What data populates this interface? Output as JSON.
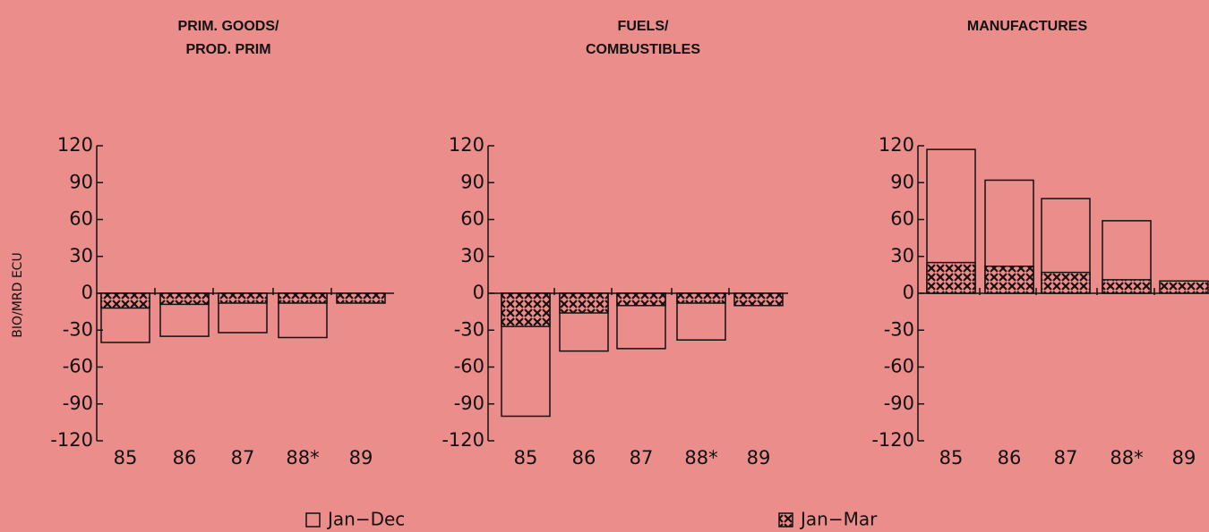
{
  "chart_data": [
    {
      "type": "bar",
      "title": [
        "PRIM. GOODS/",
        "PROD. PRIM"
      ],
      "ylabel": "BIO/MRD ECU",
      "categories": [
        "85",
        "86",
        "87",
        "88*",
        "89"
      ],
      "series": [
        {
          "values": [
            -40,
            -35,
            -32,
            -36,
            null
          ],
          "pattern": "none"
        },
        {
          "values": [
            -12,
            -9,
            -8,
            -8,
            -8
          ],
          "pattern": "hatch"
        }
      ],
      "ylim": [
        -120,
        120
      ],
      "yticks": [
        -120,
        -90,
        -60,
        -30,
        0,
        30,
        60,
        90,
        120
      ]
    },
    {
      "type": "bar",
      "title": [
        "FUELS/",
        "COMBUSTIBLES"
      ],
      "categories": [
        "85",
        "86",
        "87",
        "88*",
        "89"
      ],
      "series": [
        {
          "values": [
            -100,
            -47,
            -45,
            -38,
            null
          ],
          "pattern": "none"
        },
        {
          "values": [
            -27,
            -16,
            -10,
            -8,
            -10
          ],
          "pattern": "hatch"
        }
      ],
      "ylim": [
        -120,
        120
      ],
      "yticks": [
        -120,
        -90,
        -60,
        -30,
        0,
        30,
        60,
        90,
        120
      ]
    },
    {
      "type": "bar",
      "title": [
        "MANUFACTURES"
      ],
      "categories": [
        "85",
        "86",
        "87",
        "88*",
        "89"
      ],
      "series": [
        {
          "values": [
            117,
            92,
            77,
            59,
            null
          ],
          "pattern": "none"
        },
        {
          "values": [
            25,
            22,
            17,
            11,
            10
          ],
          "pattern": "hatch"
        }
      ],
      "ylim": [
        -120,
        120
      ],
      "yticks": [
        -120,
        -90,
        -60,
        -30,
        0,
        30,
        60,
        90,
        120
      ]
    }
  ],
  "legend": [
    {
      "name": "Jan−Dec",
      "pattern": "none"
    },
    {
      "name": "Jan−Mar",
      "pattern": "hatch"
    }
  ]
}
